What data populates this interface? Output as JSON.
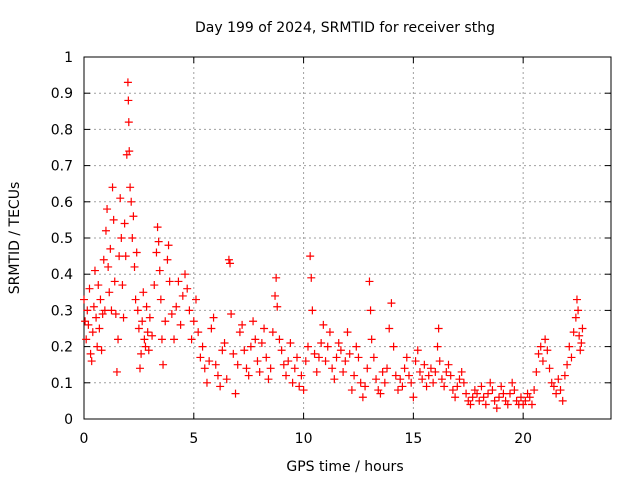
{
  "chart_data": {
    "type": "scatter",
    "title": "Day 199 of 2024, SRMTID for receiver sthg",
    "xlabel": "GPS time / hours",
    "ylabel": "SRMTID / TECUs",
    "xlim": [
      0,
      24
    ],
    "ylim": [
      0,
      1
    ],
    "xticks": [
      0,
      5,
      10,
      15,
      20
    ],
    "yticks": [
      0,
      0.1,
      0.2,
      0.3,
      0.4,
      0.5,
      0.6,
      0.7,
      0.8,
      0.9,
      1
    ],
    "grid": true,
    "marker": "+",
    "color": "#ff0000",
    "series": [
      {
        "name": "SRMTID",
        "points": [
          [
            0.0,
            0.33
          ],
          [
            0.05,
            0.27
          ],
          [
            0.1,
            0.22
          ],
          [
            0.15,
            0.3
          ],
          [
            0.2,
            0.26
          ],
          [
            0.25,
            0.36
          ],
          [
            0.3,
            0.18
          ],
          [
            0.35,
            0.16
          ],
          [
            0.4,
            0.24
          ],
          [
            0.45,
            0.31
          ],
          [
            0.5,
            0.41
          ],
          [
            0.55,
            0.28
          ],
          [
            0.6,
            0.2
          ],
          [
            0.65,
            0.37
          ],
          [
            0.7,
            0.25
          ],
          [
            0.75,
            0.33
          ],
          [
            0.8,
            0.19
          ],
          [
            0.85,
            0.29
          ],
          [
            0.9,
            0.44
          ],
          [
            0.95,
            0.3
          ],
          [
            1.0,
            0.52
          ],
          [
            1.05,
            0.58
          ],
          [
            1.1,
            0.42
          ],
          [
            1.15,
            0.35
          ],
          [
            1.2,
            0.47
          ],
          [
            1.25,
            0.3
          ],
          [
            1.3,
            0.64
          ],
          [
            1.35,
            0.55
          ],
          [
            1.4,
            0.38
          ],
          [
            1.45,
            0.29
          ],
          [
            1.5,
            0.13
          ],
          [
            1.55,
            0.22
          ],
          [
            1.6,
            0.45
          ],
          [
            1.65,
            0.61
          ],
          [
            1.7,
            0.5
          ],
          [
            1.75,
            0.37
          ],
          [
            1.8,
            0.28
          ],
          [
            1.85,
            0.54
          ],
          [
            1.9,
            0.45
          ],
          [
            1.95,
            0.73
          ],
          [
            2.0,
            0.93
          ],
          [
            2.02,
            0.88
          ],
          [
            2.04,
            0.82
          ],
          [
            2.06,
            0.74
          ],
          [
            2.1,
            0.64
          ],
          [
            2.15,
            0.6
          ],
          [
            2.2,
            0.5
          ],
          [
            2.25,
            0.56
          ],
          [
            2.3,
            0.42
          ],
          [
            2.35,
            0.33
          ],
          [
            2.4,
            0.46
          ],
          [
            2.45,
            0.3
          ],
          [
            2.5,
            0.25
          ],
          [
            2.55,
            0.14
          ],
          [
            2.6,
            0.18
          ],
          [
            2.65,
            0.27
          ],
          [
            2.7,
            0.35
          ],
          [
            2.75,
            0.22
          ],
          [
            2.8,
            0.2
          ],
          [
            2.85,
            0.31
          ],
          [
            2.9,
            0.24
          ],
          [
            2.95,
            0.19
          ],
          [
            3.0,
            0.28
          ],
          [
            3.1,
            0.23
          ],
          [
            3.2,
            0.37
          ],
          [
            3.3,
            0.46
          ],
          [
            3.35,
            0.53
          ],
          [
            3.4,
            0.49
          ],
          [
            3.45,
            0.41
          ],
          [
            3.5,
            0.33
          ],
          [
            3.55,
            0.22
          ],
          [
            3.6,
            0.15
          ],
          [
            3.7,
            0.27
          ],
          [
            3.8,
            0.44
          ],
          [
            3.85,
            0.48
          ],
          [
            3.9,
            0.38
          ],
          [
            4.0,
            0.29
          ],
          [
            4.1,
            0.22
          ],
          [
            4.2,
            0.31
          ],
          [
            4.3,
            0.38
          ],
          [
            4.4,
            0.26
          ],
          [
            4.5,
            0.34
          ],
          [
            4.6,
            0.4
          ],
          [
            4.7,
            0.36
          ],
          [
            4.8,
            0.3
          ],
          [
            4.9,
            0.22
          ],
          [
            5.0,
            0.27
          ],
          [
            5.1,
            0.33
          ],
          [
            5.2,
            0.24
          ],
          [
            5.3,
            0.17
          ],
          [
            5.4,
            0.2
          ],
          [
            5.5,
            0.14
          ],
          [
            5.6,
            0.1
          ],
          [
            5.7,
            0.16
          ],
          [
            5.8,
            0.25
          ],
          [
            5.9,
            0.28
          ],
          [
            6.0,
            0.15
          ],
          [
            6.1,
            0.12
          ],
          [
            6.2,
            0.09
          ],
          [
            6.3,
            0.19
          ],
          [
            6.4,
            0.21
          ],
          [
            6.5,
            0.11
          ],
          [
            6.6,
            0.44
          ],
          [
            6.65,
            0.43
          ],
          [
            6.7,
            0.29
          ],
          [
            6.8,
            0.18
          ],
          [
            6.9,
            0.07
          ],
          [
            7.0,
            0.15
          ],
          [
            7.1,
            0.24
          ],
          [
            7.2,
            0.26
          ],
          [
            7.3,
            0.19
          ],
          [
            7.4,
            0.14
          ],
          [
            7.5,
            0.12
          ],
          [
            7.6,
            0.2
          ],
          [
            7.7,
            0.27
          ],
          [
            7.8,
            0.22
          ],
          [
            7.9,
            0.16
          ],
          [
            8.0,
            0.13
          ],
          [
            8.1,
            0.21
          ],
          [
            8.2,
            0.25
          ],
          [
            8.3,
            0.17
          ],
          [
            8.4,
            0.11
          ],
          [
            8.5,
            0.14
          ],
          [
            8.6,
            0.24
          ],
          [
            8.7,
            0.34
          ],
          [
            8.75,
            0.39
          ],
          [
            8.8,
            0.31
          ],
          [
            8.9,
            0.22
          ],
          [
            9.0,
            0.19
          ],
          [
            9.1,
            0.15
          ],
          [
            9.2,
            0.12
          ],
          [
            9.3,
            0.16
          ],
          [
            9.4,
            0.21
          ],
          [
            9.5,
            0.1
          ],
          [
            9.6,
            0.14
          ],
          [
            9.7,
            0.17
          ],
          [
            9.8,
            0.09
          ],
          [
            9.9,
            0.12
          ],
          [
            10.0,
            0.08
          ],
          [
            10.1,
            0.16
          ],
          [
            10.2,
            0.2
          ],
          [
            10.3,
            0.45
          ],
          [
            10.35,
            0.39
          ],
          [
            10.4,
            0.3
          ],
          [
            10.5,
            0.18
          ],
          [
            10.6,
            0.13
          ],
          [
            10.7,
            0.17
          ],
          [
            10.8,
            0.21
          ],
          [
            10.9,
            0.26
          ],
          [
            11.0,
            0.16
          ],
          [
            11.1,
            0.2
          ],
          [
            11.2,
            0.24
          ],
          [
            11.3,
            0.14
          ],
          [
            11.4,
            0.11
          ],
          [
            11.5,
            0.17
          ],
          [
            11.6,
            0.21
          ],
          [
            11.7,
            0.19
          ],
          [
            11.8,
            0.13
          ],
          [
            11.9,
            0.16
          ],
          [
            12.0,
            0.24
          ],
          [
            12.1,
            0.18
          ],
          [
            12.2,
            0.08
          ],
          [
            12.3,
            0.12
          ],
          [
            12.4,
            0.2
          ],
          [
            12.5,
            0.17
          ],
          [
            12.6,
            0.1
          ],
          [
            12.7,
            0.06
          ],
          [
            12.8,
            0.09
          ],
          [
            12.9,
            0.14
          ],
          [
            13.0,
            0.38
          ],
          [
            13.05,
            0.3
          ],
          [
            13.1,
            0.22
          ],
          [
            13.2,
            0.17
          ],
          [
            13.3,
            0.11
          ],
          [
            13.4,
            0.08
          ],
          [
            13.5,
            0.07
          ],
          [
            13.6,
            0.13
          ],
          [
            13.7,
            0.1
          ],
          [
            13.8,
            0.14
          ],
          [
            13.9,
            0.25
          ],
          [
            14.0,
            0.32
          ],
          [
            14.1,
            0.2
          ],
          [
            14.2,
            0.12
          ],
          [
            14.3,
            0.08
          ],
          [
            14.4,
            0.11
          ],
          [
            14.5,
            0.09
          ],
          [
            14.6,
            0.14
          ],
          [
            14.7,
            0.17
          ],
          [
            14.8,
            0.12
          ],
          [
            14.9,
            0.1
          ],
          [
            15.0,
            0.06
          ],
          [
            15.1,
            0.16
          ],
          [
            15.2,
            0.19
          ],
          [
            15.3,
            0.13
          ],
          [
            15.4,
            0.11
          ],
          [
            15.5,
            0.15
          ],
          [
            15.6,
            0.09
          ],
          [
            15.7,
            0.12
          ],
          [
            15.8,
            0.14
          ],
          [
            15.9,
            0.1
          ],
          [
            16.0,
            0.13
          ],
          [
            16.1,
            0.2
          ],
          [
            16.15,
            0.25
          ],
          [
            16.2,
            0.16
          ],
          [
            16.3,
            0.11
          ],
          [
            16.4,
            0.09
          ],
          [
            16.5,
            0.13
          ],
          [
            16.6,
            0.15
          ],
          [
            16.7,
            0.12
          ],
          [
            16.8,
            0.08
          ],
          [
            16.9,
            0.06
          ],
          [
            17.0,
            0.09
          ],
          [
            17.1,
            0.11
          ],
          [
            17.2,
            0.13
          ],
          [
            17.3,
            0.1
          ],
          [
            17.4,
            0.07
          ],
          [
            17.5,
            0.05
          ],
          [
            17.6,
            0.04
          ],
          [
            17.7,
            0.06
          ],
          [
            17.8,
            0.08
          ],
          [
            17.9,
            0.07
          ],
          [
            18.0,
            0.05
          ],
          [
            18.1,
            0.09
          ],
          [
            18.2,
            0.06
          ],
          [
            18.3,
            0.04
          ],
          [
            18.4,
            0.07
          ],
          [
            18.5,
            0.1
          ],
          [
            18.6,
            0.08
          ],
          [
            18.7,
            0.05
          ],
          [
            18.8,
            0.03
          ],
          [
            18.9,
            0.06
          ],
          [
            19.0,
            0.09
          ],
          [
            19.1,
            0.07
          ],
          [
            19.2,
            0.05
          ],
          [
            19.3,
            0.04
          ],
          [
            19.4,
            0.07
          ],
          [
            19.5,
            0.1
          ],
          [
            19.6,
            0.08
          ],
          [
            19.7,
            0.05
          ],
          [
            19.8,
            0.04
          ],
          [
            19.9,
            0.06
          ],
          [
            20.0,
            0.04
          ],
          [
            20.1,
            0.05
          ],
          [
            20.2,
            0.07
          ],
          [
            20.3,
            0.06
          ],
          [
            20.4,
            0.04
          ],
          [
            20.5,
            0.08
          ],
          [
            20.6,
            0.13
          ],
          [
            20.7,
            0.18
          ],
          [
            20.8,
            0.2
          ],
          [
            20.9,
            0.16
          ],
          [
            21.0,
            0.22
          ],
          [
            21.1,
            0.19
          ],
          [
            21.2,
            0.14
          ],
          [
            21.3,
            0.1
          ],
          [
            21.4,
            0.09
          ],
          [
            21.5,
            0.07
          ],
          [
            21.6,
            0.11
          ],
          [
            21.7,
            0.08
          ],
          [
            21.8,
            0.05
          ],
          [
            21.9,
            0.12
          ],
          [
            22.0,
            0.15
          ],
          [
            22.1,
            0.2
          ],
          [
            22.2,
            0.17
          ],
          [
            22.3,
            0.24
          ],
          [
            22.4,
            0.28
          ],
          [
            22.45,
            0.33
          ],
          [
            22.5,
            0.3
          ],
          [
            22.55,
            0.23
          ],
          [
            22.6,
            0.19
          ],
          [
            22.65,
            0.21
          ],
          [
            22.7,
            0.25
          ]
        ]
      }
    ]
  }
}
